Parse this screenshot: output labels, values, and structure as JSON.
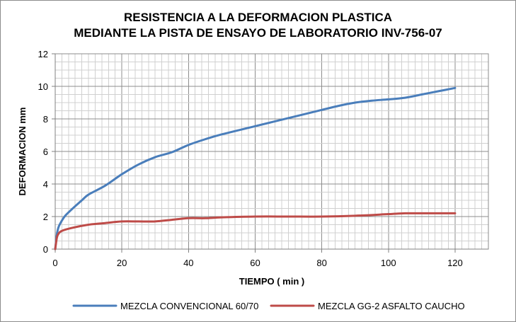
{
  "chart_data": {
    "type": "line",
    "title_line1": "RESISTENCIA A LA DEFORMACION PLASTICA",
    "title_line2": "MEDIANTE LA  PISTA DE ENSAYO DE LABORATORIO INV-756-07",
    "xlabel": "TIEMPO ( min )",
    "ylabel": "DEFORMACION mm",
    "xlim": [
      0,
      130
    ],
    "ylim": [
      0,
      12
    ],
    "xticks": [
      0,
      20,
      40,
      60,
      80,
      100,
      120
    ],
    "yticks": [
      0,
      2,
      4,
      6,
      8,
      10,
      12
    ],
    "x_minor_step": 2,
    "y_minor_step": 0.5,
    "grid": true,
    "legend_position": "bottom",
    "series": [
      {
        "name": "MEZCLA CONVENCIONAL 60/70",
        "color": "#4a7ebb",
        "points": [
          [
            0,
            0
          ],
          [
            0.5,
            0.9
          ],
          [
            1,
            1.35
          ],
          [
            2,
            1.75
          ],
          [
            3,
            2.05
          ],
          [
            5,
            2.45
          ],
          [
            8,
            3.0
          ],
          [
            10,
            3.35
          ],
          [
            15,
            3.9
          ],
          [
            20,
            4.6
          ],
          [
            25,
            5.2
          ],
          [
            30,
            5.65
          ],
          [
            35,
            5.95
          ],
          [
            40,
            6.4
          ],
          [
            45,
            6.75
          ],
          [
            50,
            7.05
          ],
          [
            60,
            7.55
          ],
          [
            70,
            8.05
          ],
          [
            80,
            8.55
          ],
          [
            85,
            8.8
          ],
          [
            90,
            9.0
          ],
          [
            95,
            9.12
          ],
          [
            100,
            9.2
          ],
          [
            105,
            9.3
          ],
          [
            110,
            9.5
          ],
          [
            115,
            9.7
          ],
          [
            120,
            9.9
          ]
        ]
      },
      {
        "name": "MEZCLA GG-2 ASFALTO CAUCHO",
        "color": "#be4b48",
        "points": [
          [
            0,
            0
          ],
          [
            0.5,
            0.7
          ],
          [
            1,
            0.95
          ],
          [
            2,
            1.12
          ],
          [
            5,
            1.3
          ],
          [
            10,
            1.5
          ],
          [
            15,
            1.6
          ],
          [
            20,
            1.7
          ],
          [
            25,
            1.7
          ],
          [
            30,
            1.7
          ],
          [
            35,
            1.8
          ],
          [
            40,
            1.9
          ],
          [
            45,
            1.9
          ],
          [
            50,
            1.95
          ],
          [
            60,
            2.0
          ],
          [
            70,
            2.0
          ],
          [
            80,
            2.0
          ],
          [
            90,
            2.05
          ],
          [
            100,
            2.15
          ],
          [
            105,
            2.2
          ],
          [
            110,
            2.2
          ],
          [
            120,
            2.2
          ]
        ]
      }
    ]
  }
}
